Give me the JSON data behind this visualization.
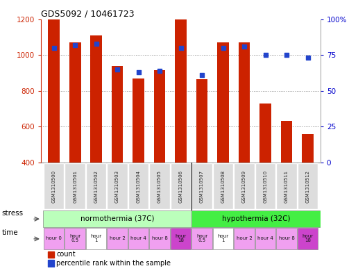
{
  "title": "GDS5092 / 10461723",
  "samples": [
    "GSM1310500",
    "GSM1310501",
    "GSM1310502",
    "GSM1310503",
    "GSM1310504",
    "GSM1310505",
    "GSM1310506",
    "GSM1310507",
    "GSM1310508",
    "GSM1310509",
    "GSM1310510",
    "GSM1310511",
    "GSM1310512"
  ],
  "counts": [
    1200,
    1070,
    1110,
    940,
    868,
    915,
    1200,
    865,
    1070,
    1070,
    730,
    632,
    560
  ],
  "percentiles": [
    80,
    82,
    83,
    65,
    63,
    64,
    80,
    61,
    80,
    81,
    75,
    75,
    73
  ],
  "ymin": 400,
  "ymax": 1200,
  "y_ticks": [
    400,
    600,
    800,
    1000,
    1200
  ],
  "right_yticks": [
    0,
    25,
    50,
    75,
    100
  ],
  "right_ytick_labels": [
    "0",
    "25",
    "50",
    "75",
    "100%"
  ],
  "bar_color": "#cc2200",
  "dot_color": "#2244cc",
  "bar_width": 0.55,
  "norm_color": "#bbffbb",
  "hypo_color": "#44ee44",
  "time_colors": [
    "#f0a0f0",
    "#f0a0f0",
    "#ffffff",
    "#f0a0f0",
    "#f0a0f0",
    "#f0a0f0",
    "#cc44cc",
    "#f0a0f0",
    "#ffffff",
    "#f0a0f0",
    "#f0a0f0",
    "#f0a0f0",
    "#cc44cc"
  ],
  "time_labels": [
    "hour 0",
    "hour\n0.5",
    "hour\n1",
    "hour 2",
    "hour 4",
    "hour 8",
    "hour\n18",
    "hour\n0.5",
    "hour\n1",
    "hour 2",
    "hour 4",
    "hour 8",
    "hour\n18"
  ],
  "sample_box_color": "#dddddd",
  "grid_color": "#888888",
  "bg_color": "#ffffff",
  "legend_items": [
    {
      "color": "#cc2200",
      "label": "count"
    },
    {
      "color": "#2244cc",
      "label": "percentile rank within the sample"
    }
  ]
}
